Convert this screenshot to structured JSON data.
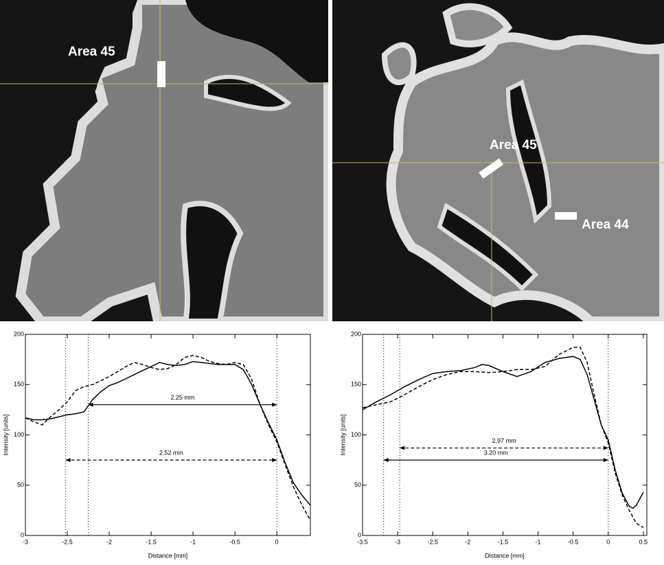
{
  "images": [
    {
      "labels": [
        "Area 45"
      ]
    },
    {
      "labels": [
        "Area 45",
        "Area 44"
      ]
    }
  ],
  "chart_data": [
    {
      "type": "line",
      "xlabel": "Distance [mm]",
      "ylabel": "Intensity [units]",
      "xlim": [
        -3,
        0.4
      ],
      "ylim": [
        0,
        200
      ],
      "xticks": [
        -3,
        -2.5,
        -2,
        -1.5,
        -1,
        -0.5,
        0
      ],
      "yticks": [
        0,
        50,
        100,
        150,
        200
      ],
      "vlines": [
        -2.52,
        -2.25,
        0
      ],
      "annotations": [
        {
          "text": "2.25 mm",
          "x": [
            -2.25,
            0
          ],
          "y": 130,
          "style": "solid"
        },
        {
          "text": "2.52 mm",
          "x": [
            -2.52,
            0
          ],
          "y": 75,
          "style": "dashed"
        }
      ],
      "series": [
        {
          "style": "solid",
          "color": "#000000",
          "x": [
            -3,
            -2.9,
            -2.8,
            -2.7,
            -2.6,
            -2.5,
            -2.4,
            -2.3,
            -2.2,
            -2.1,
            -2,
            -1.9,
            -1.8,
            -1.7,
            -1.6,
            -1.5,
            -1.4,
            -1.3,
            -1.2,
            -1.1,
            -1,
            -0.9,
            -0.8,
            -0.7,
            -0.6,
            -0.5,
            -0.4,
            -0.3,
            -0.2,
            -0.1,
            0,
            0.1,
            0.2,
            0.3,
            0.4
          ],
          "values": [
            117,
            115,
            115,
            116,
            118,
            120,
            121,
            123,
            135,
            143,
            149,
            152,
            156,
            160,
            164,
            168,
            172,
            170,
            169,
            170,
            173,
            172,
            171,
            170,
            170,
            170,
            165,
            150,
            130,
            112,
            95,
            72,
            52,
            40,
            30
          ]
        },
        {
          "style": "dashed",
          "color": "#000000",
          "x": [
            -3,
            -2.9,
            -2.8,
            -2.7,
            -2.6,
            -2.5,
            -2.4,
            -2.3,
            -2.2,
            -2.1,
            -2,
            -1.9,
            -1.8,
            -1.7,
            -1.6,
            -1.5,
            -1.4,
            -1.3,
            -1.2,
            -1.1,
            -1,
            -0.9,
            -0.8,
            -0.7,
            -0.6,
            -0.5,
            -0.4,
            -0.3,
            -0.2,
            -0.1,
            0,
            0.1,
            0.2,
            0.3,
            0.4
          ],
          "values": [
            117,
            113,
            110,
            118,
            125,
            133,
            144,
            148,
            150,
            154,
            158,
            163,
            168,
            172,
            170,
            167,
            165,
            166,
            170,
            177,
            179,
            177,
            173,
            171,
            170,
            172,
            170,
            155,
            130,
            110,
            93,
            70,
            48,
            30,
            15
          ]
        }
      ]
    },
    {
      "type": "line",
      "xlabel": "Distance [mm]",
      "ylabel": "Intensity [units]",
      "xlim": [
        -3.5,
        0.55
      ],
      "ylim": [
        0,
        200
      ],
      "xticks": [
        -3.5,
        -3,
        -2.5,
        -2,
        -1.5,
        -1,
        -0.5,
        0,
        0.5
      ],
      "yticks": [
        0,
        50,
        100,
        150,
        200
      ],
      "vlines": [
        -3.2,
        -2.97,
        0
      ],
      "annotations": [
        {
          "text": "2.97 mm",
          "x": [
            -2.97,
            0
          ],
          "y": 87,
          "style": "dashed"
        },
        {
          "text": "3.20 mm",
          "x": [
            -3.2,
            0
          ],
          "y": 75,
          "style": "solid"
        }
      ],
      "series": [
        {
          "style": "solid",
          "color": "#000000",
          "x": [
            -3.5,
            -3.3,
            -3.1,
            -2.9,
            -2.7,
            -2.5,
            -2.3,
            -2.1,
            -1.9,
            -1.8,
            -1.7,
            -1.5,
            -1.3,
            -1.1,
            -0.9,
            -0.7,
            -0.5,
            -0.4,
            -0.3,
            -0.2,
            -0.1,
            0,
            0.1,
            0.2,
            0.3,
            0.35,
            0.4,
            0.5
          ],
          "values": [
            125,
            133,
            140,
            148,
            155,
            161,
            163,
            164,
            167,
            170,
            169,
            163,
            158,
            163,
            172,
            176,
            178,
            175,
            160,
            135,
            110,
            95,
            65,
            42,
            29,
            27,
            30,
            43
          ]
        },
        {
          "style": "dashed",
          "color": "#000000",
          "x": [
            -3.5,
            -3.3,
            -3.1,
            -2.9,
            -2.7,
            -2.5,
            -2.3,
            -2.1,
            -1.9,
            -1.7,
            -1.5,
            -1.3,
            -1.1,
            -0.9,
            -0.7,
            -0.5,
            -0.4,
            -0.3,
            -0.2,
            -0.1,
            0,
            0.1,
            0.2,
            0.3,
            0.4,
            0.5
          ],
          "values": [
            127,
            130,
            133,
            140,
            148,
            155,
            160,
            163,
            163,
            162,
            163,
            165,
            165,
            168,
            180,
            187,
            187,
            172,
            140,
            110,
            92,
            62,
            40,
            25,
            12,
            8
          ]
        }
      ]
    }
  ]
}
